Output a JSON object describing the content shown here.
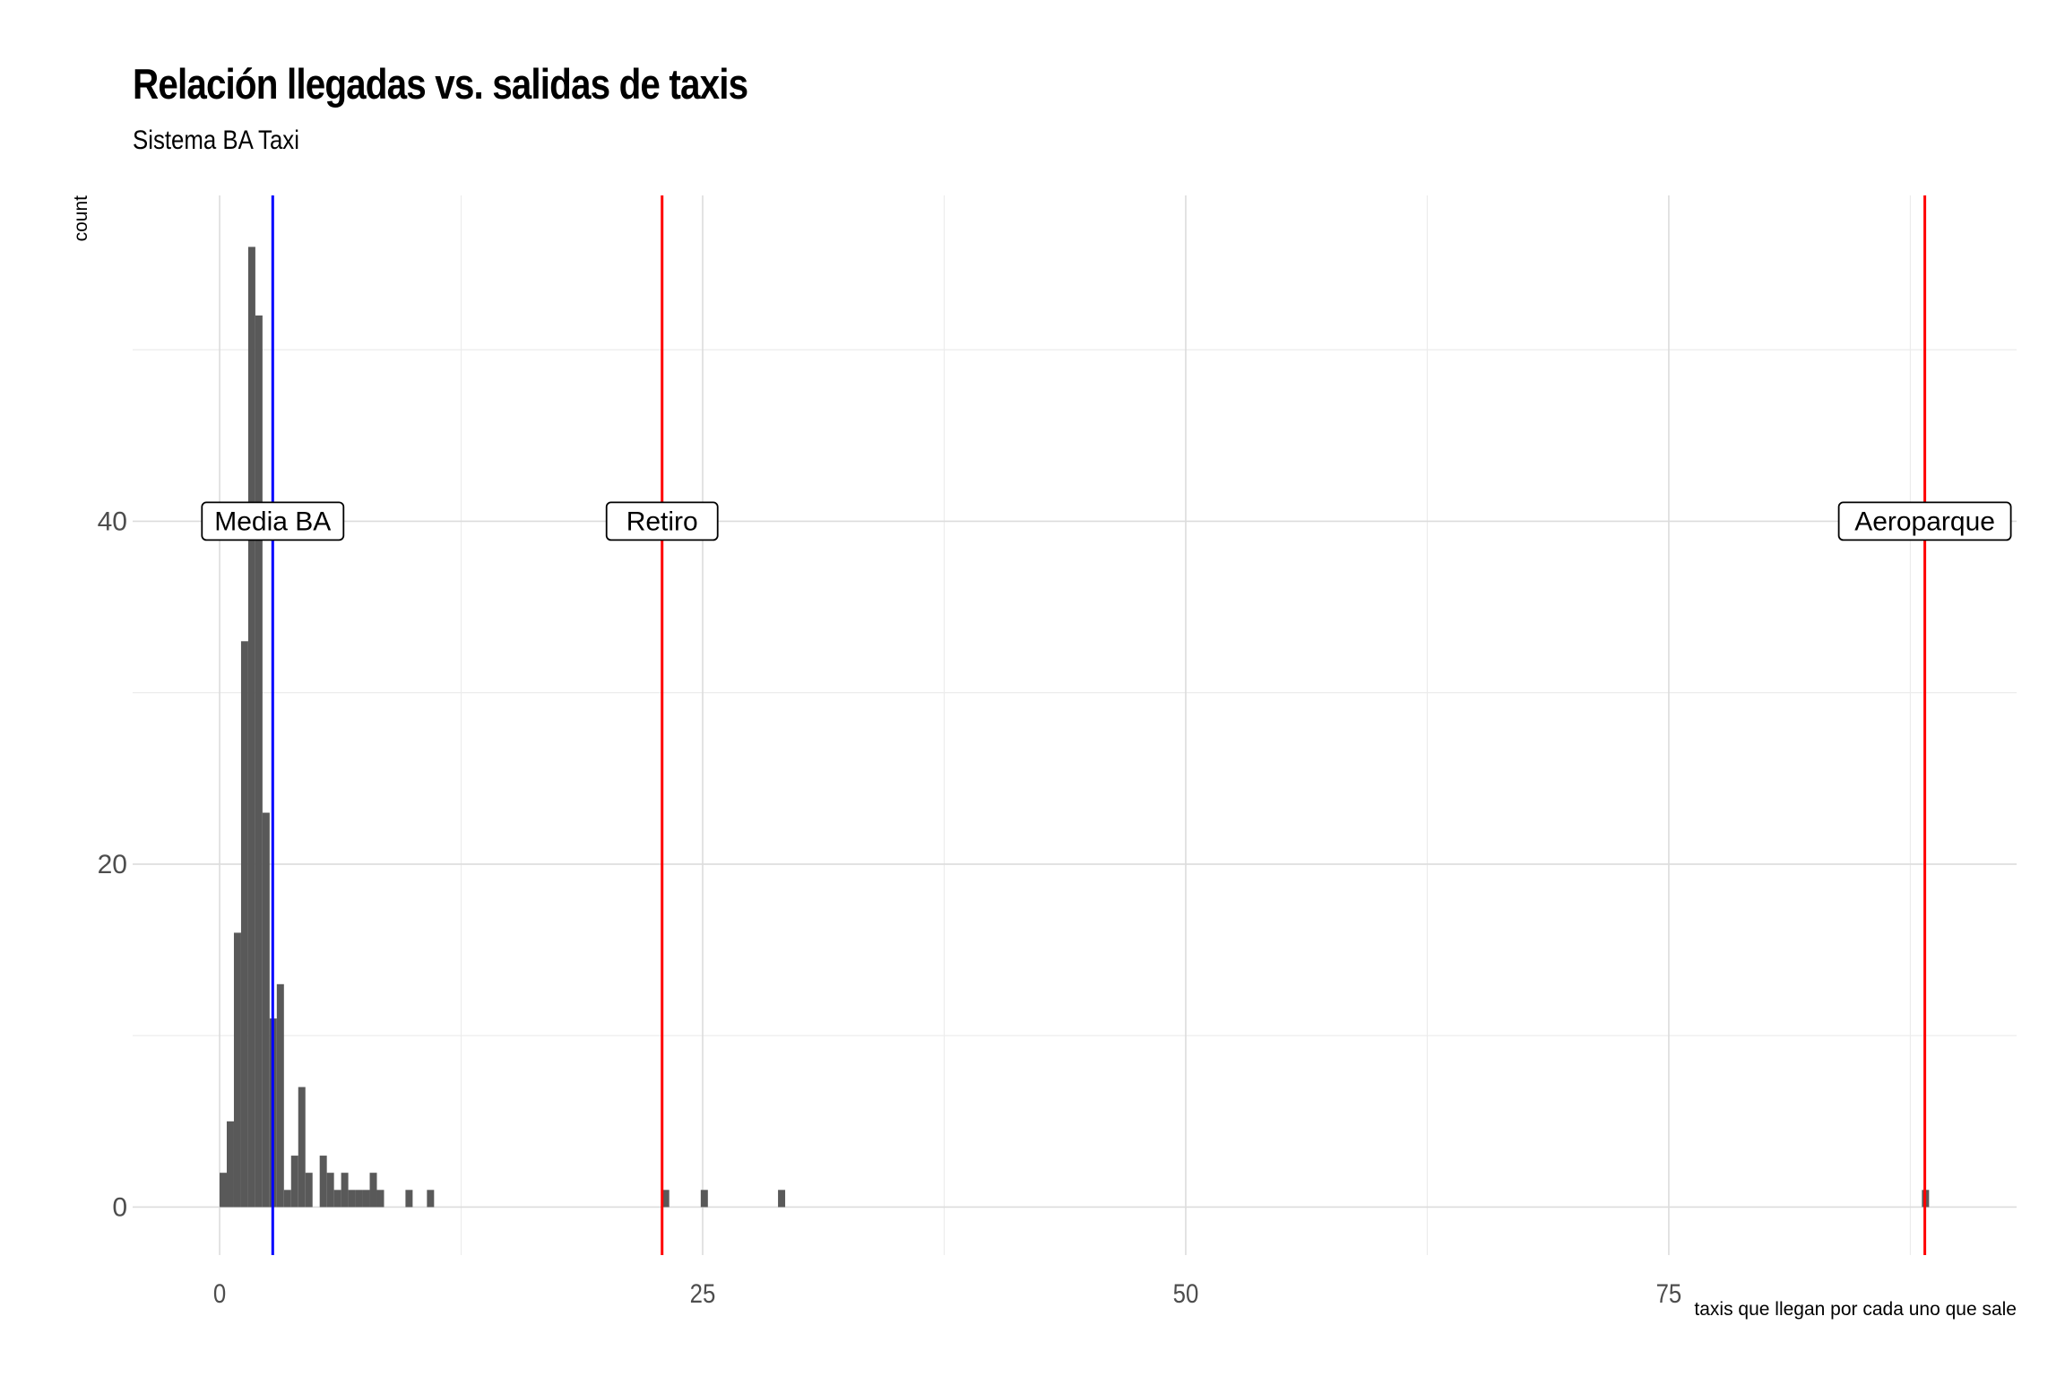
{
  "chart_data": {
    "type": "bar",
    "title": "Relación llegadas vs. salidas de taxis",
    "subtitle": "Sistema BA Taxi",
    "xlabel": "taxis que llegan por cada uno que sale",
    "ylabel": "count",
    "xlim": [
      -4.5,
      93
    ],
    "ylim": [
      -2.8,
      59
    ],
    "x_ticks": [
      0,
      25,
      50,
      75
    ],
    "x_tick_labels": [
      "0",
      "25",
      "50",
      "75"
    ],
    "y_ticks": [
      0,
      20,
      40
    ],
    "y_tick_labels": [
      "0",
      "20",
      "40"
    ],
    "grid": true,
    "legend": "none",
    "bin_width": 0.37,
    "bins": [
      {
        "x": 0.0,
        "count": 2
      },
      {
        "x": 0.37,
        "count": 5
      },
      {
        "x": 0.74,
        "count": 16
      },
      {
        "x": 1.11,
        "count": 33
      },
      {
        "x": 1.48,
        "count": 56
      },
      {
        "x": 1.85,
        "count": 52
      },
      {
        "x": 2.22,
        "count": 23
      },
      {
        "x": 2.59,
        "count": 11
      },
      {
        "x": 2.96,
        "count": 13
      },
      {
        "x": 3.33,
        "count": 1
      },
      {
        "x": 3.7,
        "count": 3
      },
      {
        "x": 4.07,
        "count": 7
      },
      {
        "x": 4.44,
        "count": 2
      },
      {
        "x": 5.18,
        "count": 3
      },
      {
        "x": 5.55,
        "count": 2
      },
      {
        "x": 5.92,
        "count": 1
      },
      {
        "x": 6.29,
        "count": 2
      },
      {
        "x": 6.66,
        "count": 1
      },
      {
        "x": 7.03,
        "count": 1
      },
      {
        "x": 7.4,
        "count": 1
      },
      {
        "x": 7.77,
        "count": 2
      },
      {
        "x": 8.14,
        "count": 1
      },
      {
        "x": 9.62,
        "count": 1
      },
      {
        "x": 10.73,
        "count": 1
      },
      {
        "x": 22.9,
        "count": 1
      },
      {
        "x": 24.9,
        "count": 1
      },
      {
        "x": 28.9,
        "count": 1
      },
      {
        "x": 88.1,
        "count": 1
      }
    ],
    "reference_lines": [
      {
        "label": "Media BA",
        "x": 2.75,
        "color": "#0000ff",
        "label_y": 40
      },
      {
        "label": "Retiro",
        "x": 22.9,
        "color": "#ff0000",
        "label_y": 40
      },
      {
        "label": "Aeroparque",
        "x": 88.25,
        "color": "#ff0000",
        "label_y": 40
      }
    ]
  }
}
